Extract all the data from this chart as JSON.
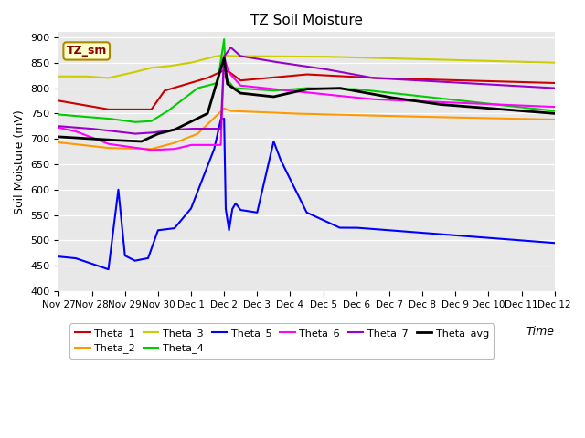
{
  "title": "TZ Soil Moisture",
  "xlabel": "Time",
  "ylabel": "Soil Moisture (mV)",
  "ylim": [
    400,
    910
  ],
  "yticks": [
    400,
    450,
    500,
    550,
    600,
    650,
    700,
    750,
    800,
    850,
    900
  ],
  "bg_color": "#e8e8e8",
  "fig_color": "#ffffff",
  "annotation_text": "TZ_sm",
  "annotation_color": "#8B0000",
  "annotation_bg": "#ffffcc",
  "x_labels": [
    "Nov 27",
    "Nov 28",
    "Nov 29",
    "Nov 30",
    "Dec 1",
    "Dec 2",
    "Dec 3",
    "Dec 4",
    "Dec 5",
    "Dec 6",
    "Dec 7",
    "Dec 8",
    "Dec 9",
    "Dec 10",
    "Dec 11",
    "Dec 12"
  ],
  "series": [
    {
      "name": "Theta_1",
      "color": "#cc0000",
      "linewidth": 1.5,
      "segments": [
        {
          "x": [
            0,
            1.5
          ],
          "y": [
            775,
            758
          ]
        },
        {
          "x": [
            1.5,
            2.8
          ],
          "y": [
            758,
            758
          ]
        },
        {
          "x": [
            2.8,
            3.2
          ],
          "y": [
            758,
            795
          ]
        },
        {
          "x": [
            3.2,
            4.5
          ],
          "y": [
            795,
            820
          ]
        },
        {
          "x": [
            4.5,
            5.0
          ],
          "y": [
            820,
            835
          ]
        },
        {
          "x": [
            5.0,
            5.15
          ],
          "y": [
            835,
            832
          ]
        },
        {
          "x": [
            5.15,
            5.5
          ],
          "y": [
            832,
            815
          ]
        },
        {
          "x": [
            5.5,
            7.5
          ],
          "y": [
            815,
            827
          ]
        },
        {
          "x": [
            7.5,
            9.5
          ],
          "y": [
            827,
            820
          ]
        },
        {
          "x": [
            9.5,
            15
          ],
          "y": [
            820,
            810
          ]
        }
      ]
    },
    {
      "name": "Theta_2",
      "color": "#ff9900",
      "linewidth": 1.5,
      "segments": [
        {
          "x": [
            0,
            1.5
          ],
          "y": [
            693,
            682
          ]
        },
        {
          "x": [
            1.5,
            2.8
          ],
          "y": [
            682,
            680
          ]
        },
        {
          "x": [
            2.8,
            3.5
          ],
          "y": [
            680,
            692
          ]
        },
        {
          "x": [
            3.5,
            4.2
          ],
          "y": [
            692,
            710
          ]
        },
        {
          "x": [
            4.2,
            5.0
          ],
          "y": [
            710,
            760
          ]
        },
        {
          "x": [
            5.0,
            5.2
          ],
          "y": [
            760,
            755
          ]
        },
        {
          "x": [
            5.2,
            7.0
          ],
          "y": [
            755,
            750
          ]
        },
        {
          "x": [
            7.0,
            10.0
          ],
          "y": [
            750,
            745
          ]
        },
        {
          "x": [
            10.0,
            15
          ],
          "y": [
            745,
            738
          ]
        }
      ]
    },
    {
      "name": "Theta_3",
      "color": "#cccc00",
      "linewidth": 1.5,
      "segments": [
        {
          "x": [
            0,
            0.8
          ],
          "y": [
            823,
            823
          ]
        },
        {
          "x": [
            0.8,
            1.5
          ],
          "y": [
            823,
            820
          ]
        },
        {
          "x": [
            1.5,
            2.2
          ],
          "y": [
            820,
            830
          ]
        },
        {
          "x": [
            2.2,
            2.8
          ],
          "y": [
            830,
            840
          ]
        },
        {
          "x": [
            2.8,
            3.3
          ],
          "y": [
            840,
            843
          ]
        },
        {
          "x": [
            3.3,
            4.0
          ],
          "y": [
            843,
            850
          ]
        },
        {
          "x": [
            4.0,
            4.7
          ],
          "y": [
            850,
            862
          ]
        },
        {
          "x": [
            4.7,
            5.0
          ],
          "y": [
            862,
            865
          ]
        },
        {
          "x": [
            5.0,
            5.2
          ],
          "y": [
            865,
            863
          ]
        },
        {
          "x": [
            5.2,
            7.0
          ],
          "y": [
            863,
            862
          ]
        },
        {
          "x": [
            7.0,
            8.0
          ],
          "y": [
            862,
            862
          ]
        },
        {
          "x": [
            8.0,
            15
          ],
          "y": [
            862,
            850
          ]
        }
      ]
    },
    {
      "name": "Theta_4",
      "color": "#00cc00",
      "linewidth": 1.5,
      "segments": [
        {
          "x": [
            0,
            0.5
          ],
          "y": [
            748,
            745
          ]
        },
        {
          "x": [
            0.5,
            1.5
          ],
          "y": [
            745,
            740
          ]
        },
        {
          "x": [
            1.5,
            2.3
          ],
          "y": [
            740,
            733
          ]
        },
        {
          "x": [
            2.3,
            2.8
          ],
          "y": [
            733,
            735
          ]
        },
        {
          "x": [
            2.8,
            3.3
          ],
          "y": [
            735,
            755
          ]
        },
        {
          "x": [
            3.3,
            4.2
          ],
          "y": [
            755,
            800
          ]
        },
        {
          "x": [
            4.2,
            4.8
          ],
          "y": [
            800,
            810
          ]
        },
        {
          "x": [
            4.8,
            5.0
          ],
          "y": [
            810,
            896
          ]
        },
        {
          "x": [
            5.0,
            5.05
          ],
          "y": [
            896,
            820
          ]
        },
        {
          "x": [
            5.05,
            5.3
          ],
          "y": [
            820,
            800
          ]
        },
        {
          "x": [
            5.3,
            6.5
          ],
          "y": [
            800,
            795
          ]
        },
        {
          "x": [
            6.5,
            7.5
          ],
          "y": [
            795,
            800
          ]
        },
        {
          "x": [
            7.5,
            9.0
          ],
          "y": [
            800,
            798
          ]
        },
        {
          "x": [
            9.0,
            15
          ],
          "y": [
            798,
            755
          ]
        }
      ]
    },
    {
      "name": "Theta_5",
      "color": "#0000ff",
      "linewidth": 1.5,
      "segments": [
        {
          "x": [
            0,
            0.5
          ],
          "y": [
            468,
            465
          ]
        },
        {
          "x": [
            0.5,
            1.5
          ],
          "y": [
            465,
            443
          ]
        },
        {
          "x": [
            1.5,
            1.8
          ],
          "y": [
            443,
            600
          ]
        },
        {
          "x": [
            1.8,
            2.0
          ],
          "y": [
            600,
            470
          ]
        },
        {
          "x": [
            2.0,
            2.3
          ],
          "y": [
            470,
            460
          ]
        },
        {
          "x": [
            2.3,
            2.7
          ],
          "y": [
            460,
            465
          ]
        },
        {
          "x": [
            2.7,
            3.0
          ],
          "y": [
            465,
            520
          ]
        },
        {
          "x": [
            3.0,
            3.5
          ],
          "y": [
            520,
            524
          ]
        },
        {
          "x": [
            3.5,
            4.0
          ],
          "y": [
            524,
            563
          ]
        },
        {
          "x": [
            4.0,
            4.7
          ],
          "y": [
            563,
            680
          ]
        },
        {
          "x": [
            4.7,
            4.9
          ],
          "y": [
            680,
            738
          ]
        },
        {
          "x": [
            4.9,
            5.0
          ],
          "y": [
            738,
            740
          ]
        },
        {
          "x": [
            5.0,
            5.05
          ],
          "y": [
            740,
            562
          ]
        },
        {
          "x": [
            5.05,
            5.15
          ],
          "y": [
            562,
            520
          ]
        },
        {
          "x": [
            5.15,
            5.25
          ],
          "y": [
            520,
            562
          ]
        },
        {
          "x": [
            5.25,
            5.35
          ],
          "y": [
            562,
            573
          ]
        },
        {
          "x": [
            5.35,
            5.5
          ],
          "y": [
            573,
            560
          ]
        },
        {
          "x": [
            5.5,
            6.0
          ],
          "y": [
            560,
            555
          ]
        },
        {
          "x": [
            6.0,
            6.5
          ],
          "y": [
            555,
            695
          ]
        },
        {
          "x": [
            6.5,
            6.7
          ],
          "y": [
            695,
            660
          ]
        },
        {
          "x": [
            6.7,
            7.5
          ],
          "y": [
            660,
            555
          ]
        },
        {
          "x": [
            7.5,
            8.5
          ],
          "y": [
            555,
            525
          ]
        },
        {
          "x": [
            8.5,
            9.0
          ],
          "y": [
            525,
            525
          ]
        },
        {
          "x": [
            9.0,
            15
          ],
          "y": [
            525,
            495
          ]
        }
      ]
    },
    {
      "name": "Theta_6",
      "color": "#ff00ff",
      "linewidth": 1.5,
      "segments": [
        {
          "x": [
            0,
            0.5
          ],
          "y": [
            722,
            715
          ]
        },
        {
          "x": [
            0.5,
            1.5
          ],
          "y": [
            715,
            690
          ]
        },
        {
          "x": [
            1.5,
            2.8
          ],
          "y": [
            690,
            678
          ]
        },
        {
          "x": [
            2.8,
            3.5
          ],
          "y": [
            678,
            680
          ]
        },
        {
          "x": [
            3.5,
            4.0
          ],
          "y": [
            680,
            688
          ]
        },
        {
          "x": [
            4.0,
            4.9
          ],
          "y": [
            688,
            688
          ]
        },
        {
          "x": [
            4.9,
            5.0
          ],
          "y": [
            688,
            860
          ]
        },
        {
          "x": [
            5.0,
            5.15
          ],
          "y": [
            860,
            830
          ]
        },
        {
          "x": [
            5.15,
            5.5
          ],
          "y": [
            830,
            805
          ]
        },
        {
          "x": [
            5.5,
            7.0
          ],
          "y": [
            805,
            795
          ]
        },
        {
          "x": [
            7.0,
            8.0
          ],
          "y": [
            795,
            788
          ]
        },
        {
          "x": [
            8.0,
            9.5
          ],
          "y": [
            788,
            778
          ]
        },
        {
          "x": [
            9.5,
            15
          ],
          "y": [
            778,
            763
          ]
        }
      ]
    },
    {
      "name": "Theta_7",
      "color": "#9900cc",
      "linewidth": 1.5,
      "segments": [
        {
          "x": [
            0,
            1.0
          ],
          "y": [
            725,
            720
          ]
        },
        {
          "x": [
            1.0,
            2.3
          ],
          "y": [
            720,
            710
          ]
        },
        {
          "x": [
            2.3,
            2.8
          ],
          "y": [
            710,
            712
          ]
        },
        {
          "x": [
            2.8,
            3.5
          ],
          "y": [
            712,
            718
          ]
        },
        {
          "x": [
            3.5,
            4.0
          ],
          "y": [
            718,
            720
          ]
        },
        {
          "x": [
            4.0,
            4.9
          ],
          "y": [
            720,
            720
          ]
        },
        {
          "x": [
            4.9,
            5.0
          ],
          "y": [
            720,
            862
          ]
        },
        {
          "x": [
            5.0,
            5.2
          ],
          "y": [
            862,
            880
          ]
        },
        {
          "x": [
            5.2,
            5.5
          ],
          "y": [
            880,
            863
          ]
        },
        {
          "x": [
            5.5,
            6.5
          ],
          "y": [
            863,
            852
          ]
        },
        {
          "x": [
            6.5,
            8.0
          ],
          "y": [
            852,
            838
          ]
        },
        {
          "x": [
            8.0,
            9.5
          ],
          "y": [
            838,
            820
          ]
        },
        {
          "x": [
            9.5,
            15
          ],
          "y": [
            820,
            800
          ]
        }
      ]
    },
    {
      "name": "Theta_avg",
      "color": "#000000",
      "linewidth": 2.0,
      "segments": [
        {
          "x": [
            0,
            0.5
          ],
          "y": [
            704,
            702
          ]
        },
        {
          "x": [
            0.5,
            1.5
          ],
          "y": [
            702,
            698
          ]
        },
        {
          "x": [
            1.5,
            2.5
          ],
          "y": [
            698,
            695
          ]
        },
        {
          "x": [
            2.5,
            3.0
          ],
          "y": [
            695,
            710
          ]
        },
        {
          "x": [
            3.0,
            3.5
          ],
          "y": [
            710,
            718
          ]
        },
        {
          "x": [
            3.5,
            4.5
          ],
          "y": [
            718,
            750
          ]
        },
        {
          "x": [
            4.5,
            5.0
          ],
          "y": [
            750,
            860
          ]
        },
        {
          "x": [
            5.0,
            5.1
          ],
          "y": [
            860,
            808
          ]
        },
        {
          "x": [
            5.1,
            5.5
          ],
          "y": [
            808,
            790
          ]
        },
        {
          "x": [
            5.5,
            6.5
          ],
          "y": [
            790,
            783
          ]
        },
        {
          "x": [
            6.5,
            7.5
          ],
          "y": [
            783,
            798
          ]
        },
        {
          "x": [
            7.5,
            8.5
          ],
          "y": [
            798,
            800
          ]
        },
        {
          "x": [
            8.5,
            10.0
          ],
          "y": [
            800,
            782
          ]
        },
        {
          "x": [
            10.0,
            11.5
          ],
          "y": [
            782,
            768
          ]
        },
        {
          "x": [
            11.5,
            15
          ],
          "y": [
            768,
            750
          ]
        }
      ]
    }
  ],
  "legend_row1": [
    "Theta_1",
    "Theta_2",
    "Theta_3",
    "Theta_4",
    "Theta_5",
    "Theta_6"
  ],
  "legend_row2": [
    "Theta_7",
    "Theta_avg"
  ]
}
